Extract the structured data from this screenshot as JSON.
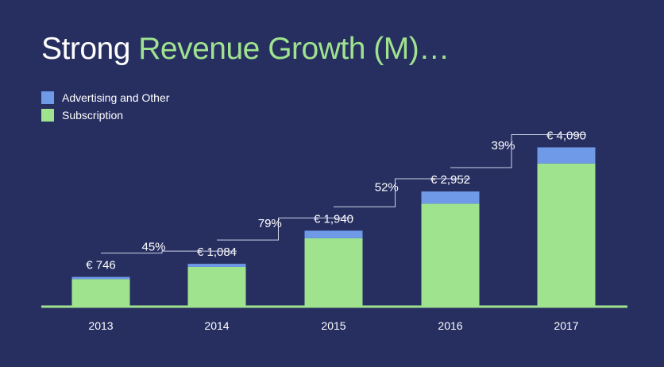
{
  "title": {
    "lead": "Strong",
    "accent": "Revenue Growth (M)…"
  },
  "legend": [
    {
      "label": "Advertising and Other",
      "color": "#6f9ae8"
    },
    {
      "label": "Subscription",
      "color": "#9fe38f"
    }
  ],
  "colors": {
    "background": "#272f61",
    "advertising": "#6f9ae8",
    "subscription": "#9fe38f",
    "connector": "#cfd3e6"
  },
  "chart_data": {
    "type": "bar",
    "stacked": true,
    "title": "Strong Revenue Growth (M)…",
    "categories": [
      "2013",
      "2014",
      "2015",
      "2016",
      "2017"
    ],
    "series": [
      {
        "name": "Subscription",
        "values": [
          691,
          1006,
          1744,
          2637,
          3674
        ]
      },
      {
        "name": "Advertising and Other",
        "values": [
          55,
          78,
          196,
          315,
          416
        ]
      }
    ],
    "totals": [
      746,
      1084,
      1940,
      2952,
      4090
    ],
    "total_labels": [
      "€ 746",
      "€ 1,084",
      "€ 1,940",
      "€ 2,952",
      "€ 4,090"
    ],
    "growth_labels": [
      "45%",
      "79%",
      "52%",
      "39%"
    ],
    "ylim": [
      0,
      4100
    ],
    "grid": false,
    "legend_position": "top-left"
  }
}
